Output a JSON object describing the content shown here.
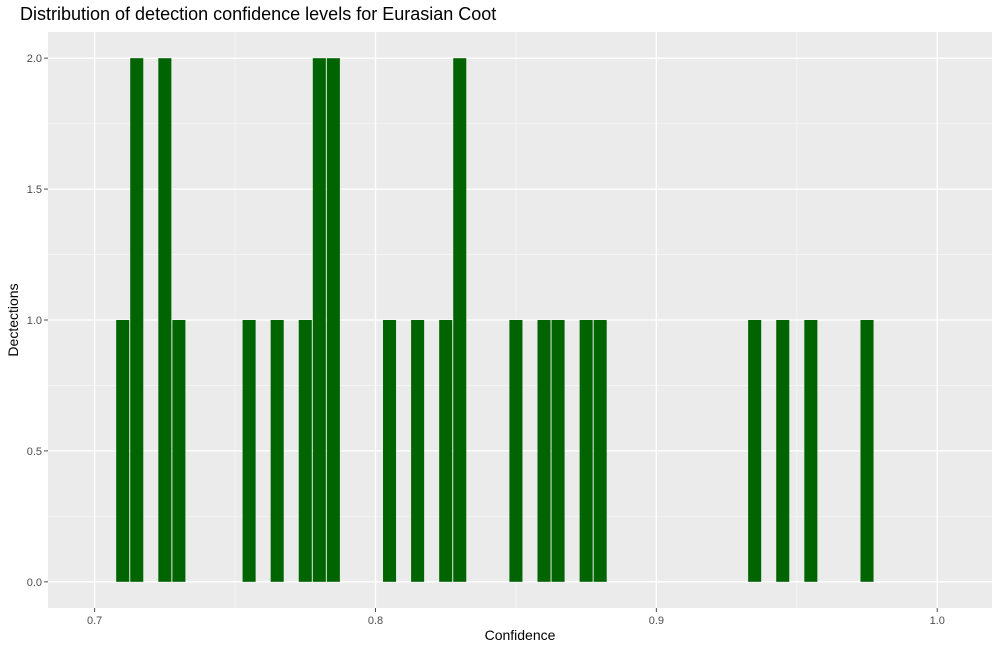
{
  "colors": {
    "bar": "#006400",
    "panel": "#ebebeb",
    "grid_major": "#ffffff",
    "grid_minor": "#f5f5f5",
    "tick": "#4d4d4d"
  },
  "chart_data": {
    "type": "bar",
    "title": "Distribution of detection confidence levels for Eurasian Coot",
    "xlabel": "Confidence",
    "ylabel": "Dectections",
    "xlim": [
      0.6834,
      1.0195
    ],
    "ylim": [
      -0.1,
      2.1
    ],
    "xticks": [
      0.7,
      0.8,
      0.9,
      1.0
    ],
    "xtick_labels": [
      "0.7",
      "0.8",
      "0.9",
      "1.0"
    ],
    "yticks": [
      0,
      0.5,
      1,
      1.5,
      2
    ],
    "ytick_labels": [
      "0.0",
      "0.5",
      "1.0",
      "1.5",
      "2.0"
    ],
    "bin_width": 0.005,
    "grid": true,
    "x": [
      0.71,
      0.715,
      0.725,
      0.73,
      0.755,
      0.765,
      0.775,
      0.78,
      0.785,
      0.805,
      0.815,
      0.825,
      0.83,
      0.85,
      0.86,
      0.865,
      0.875,
      0.88,
      0.935,
      0.945,
      0.955,
      0.975
    ],
    "values": [
      1,
      2,
      2,
      1,
      1,
      1,
      1,
      2,
      2,
      1,
      1,
      1,
      2,
      1,
      1,
      1,
      1,
      1,
      1,
      1,
      1,
      1
    ]
  }
}
